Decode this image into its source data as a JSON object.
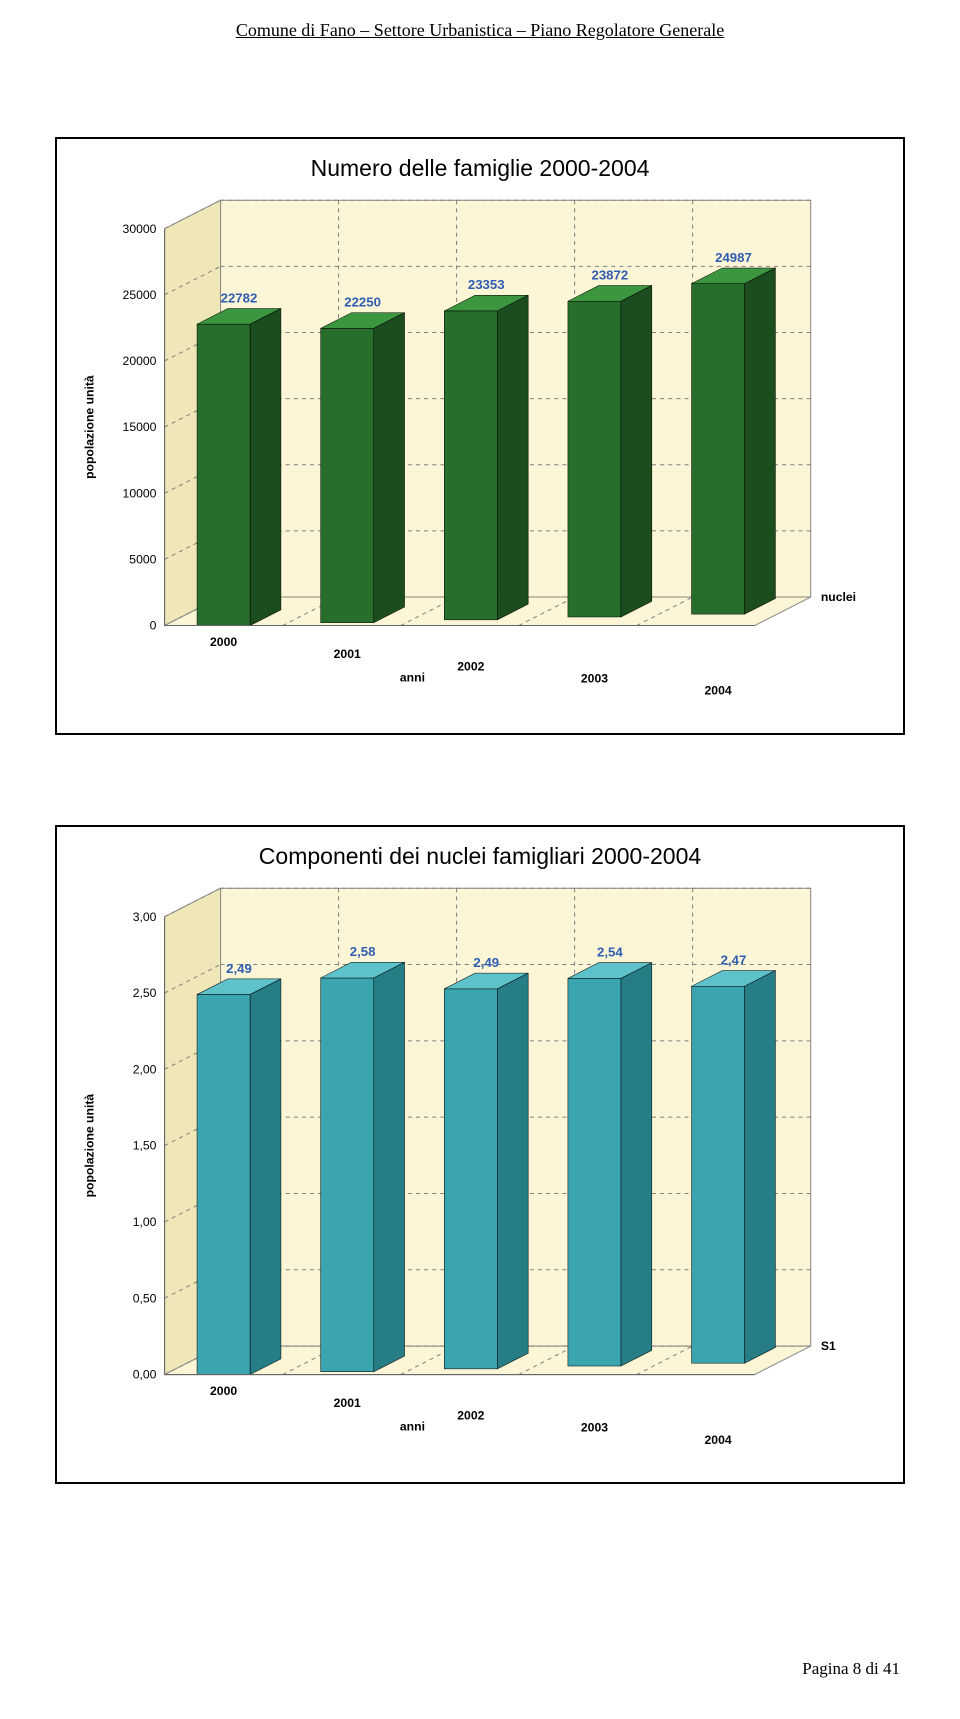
{
  "header": {
    "text": "Comune di Fano – Settore Urbanistica – Piano Regolatore Generale"
  },
  "footer": {
    "text": "Pagina 8 di 41"
  },
  "chart1": {
    "type": "bar3d",
    "title": "Numero delle famiglie 2000-2004",
    "y_axis_label": "popolazione unità",
    "x_axis_label": "anni",
    "series_label": "nuclei",
    "categories": [
      "2000",
      "2001",
      "2002",
      "2003",
      "2004"
    ],
    "values": [
      22782,
      22250,
      23353,
      23872,
      24987
    ],
    "value_labels": [
      "22782",
      "22250",
      "23353",
      "23872",
      "24987"
    ],
    "y_ticks": [
      0,
      5000,
      10000,
      15000,
      20000,
      25000,
      30000
    ],
    "y_tick_labels": [
      "0",
      "5000",
      "10000",
      "15000",
      "20000",
      "25000",
      "30000"
    ],
    "y_max": 30000,
    "floor_color": "#fdf6d6",
    "back_wall_color": "#fdf6d6",
    "side_wall_color": "#f0e7b8",
    "grid_color": "#808080",
    "bar_front_color": "#276e2c",
    "bar_top_color": "#3c9640",
    "bar_side_color": "#1b4d1f",
    "value_label_color": "#2f5db3",
    "axis_label_fontsize": 12,
    "tick_label_fontsize": 12,
    "value_label_fontsize": 13,
    "title_fontsize": 23
  },
  "chart2": {
    "type": "bar3d",
    "title": "Componenti dei nuclei famigliari 2000-2004",
    "y_axis_label": "popolazione unità",
    "x_axis_label": "anni",
    "series_label": "S1",
    "categories": [
      "2000",
      "2001",
      "2002",
      "2003",
      "2004"
    ],
    "values": [
      2.49,
      2.58,
      2.49,
      2.54,
      2.47
    ],
    "value_labels": [
      "2,49",
      "2,58",
      "2,49",
      "2,54",
      "2,47"
    ],
    "y_ticks": [
      0.0,
      0.5,
      1.0,
      1.5,
      2.0,
      2.5,
      3.0
    ],
    "y_tick_labels": [
      "0,00",
      "0,50",
      "1,00",
      "1,50",
      "2,00",
      "2,50",
      "3,00"
    ],
    "y_max": 3.0,
    "floor_color": "#fdf6d6",
    "back_wall_color": "#fdf6d6",
    "side_wall_color": "#f0e7b8",
    "grid_color": "#808080",
    "bar_front_color": "#3aa5af",
    "bar_top_color": "#5ec2cb",
    "bar_side_color": "#267d85",
    "value_label_color": "#2f5db3",
    "axis_label_fontsize": 12,
    "tick_label_fontsize": 12,
    "value_label_fontsize": 13,
    "title_fontsize": 23
  }
}
